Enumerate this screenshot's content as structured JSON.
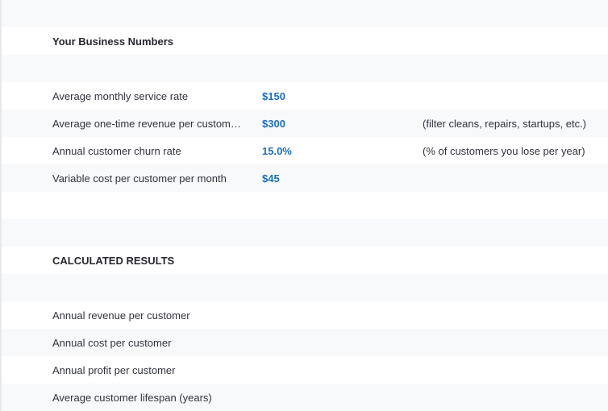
{
  "inputs_section": {
    "title": "Your Business Numbers",
    "rows": [
      {
        "label": "Average monthly service rate",
        "value": "$150",
        "note": ""
      },
      {
        "label": "Average one-time revenue per customer p...",
        "value": "$300",
        "note": "(filter cleans, repairs, startups, etc.)"
      },
      {
        "label": "Annual customer churn rate",
        "value": "15.0%",
        "note": "(% of customers you lose per year)"
      },
      {
        "label": "Variable cost per customer per month",
        "value": "$45",
        "note": ""
      }
    ]
  },
  "results_section": {
    "title": "CALCULATED RESULTS",
    "rows": [
      {
        "label": "Annual revenue per customer"
      },
      {
        "label": "Annual cost per customer"
      },
      {
        "label": "Annual profit per customer"
      },
      {
        "label": "Average customer lifespan (years)"
      }
    ]
  },
  "colors": {
    "accent_value": "#1a6fc4",
    "row_shade": "#f8f9fb",
    "row_plain": "#ffffff",
    "text": "#31333f"
  }
}
